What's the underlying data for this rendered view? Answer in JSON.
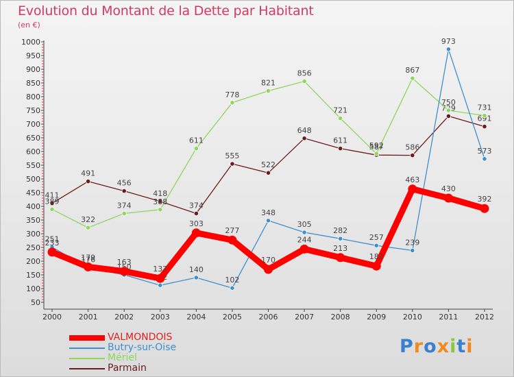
{
  "chart_data": {
    "type": "line",
    "title": "Evolution du Montant de la Dette par Habitant",
    "subtitle": "(en €)",
    "xlabel": "",
    "ylabel": "",
    "x": [
      "2000",
      "2001",
      "2002",
      "2003",
      "2004",
      "2005",
      "2006",
      "2007",
      "2008",
      "2009",
      "2010",
      "2011",
      "2012"
    ],
    "ylim": [
      50,
      1000
    ],
    "yticks": [
      50,
      100,
      150,
      200,
      250,
      300,
      350,
      400,
      450,
      500,
      550,
      600,
      650,
      700,
      750,
      800,
      850,
      900,
      950,
      1000
    ],
    "grid": false,
    "legend_position": "bottom-left",
    "series": [
      {
        "name": "VALMONDOIS",
        "color": "#ff0000",
        "values": [
          233,
          179,
          163,
          137,
          303,
          277,
          170,
          244,
          213,
          182,
          463,
          430,
          392
        ]
      },
      {
        "name": "Butry-sur-Oise",
        "color": "#3d8fd1",
        "values": [
          251,
          176,
          150,
          112,
          140,
          102,
          348,
          305,
          282,
          257,
          239,
          973,
          573
        ]
      },
      {
        "name": "Mériel",
        "color": "#8fd65c",
        "values": [
          389,
          322,
          374,
          388,
          611,
          778,
          821,
          856,
          721,
          592,
          867,
          750,
          731
        ]
      },
      {
        "name": "Parmain",
        "color": "#6b1b1b",
        "values": [
          411,
          491,
          456,
          418,
          374,
          555,
          522,
          648,
          611,
          587,
          586,
          729,
          691
        ]
      }
    ]
  },
  "brand": {
    "text": "Proxiti",
    "letters": [
      {
        "ch": "P",
        "color": "#3b7fd0"
      },
      {
        "ch": "r",
        "color": "#f08a1c"
      },
      {
        "ch": "o",
        "color": "#3b7fd0"
      },
      {
        "ch": "x",
        "color": "#f08a1c"
      },
      {
        "ch": "i",
        "color": "#8cc63f"
      },
      {
        "ch": "t",
        "color": "#3b7fd0"
      },
      {
        "ch": "i",
        "color": "#f08a1c"
      }
    ]
  }
}
